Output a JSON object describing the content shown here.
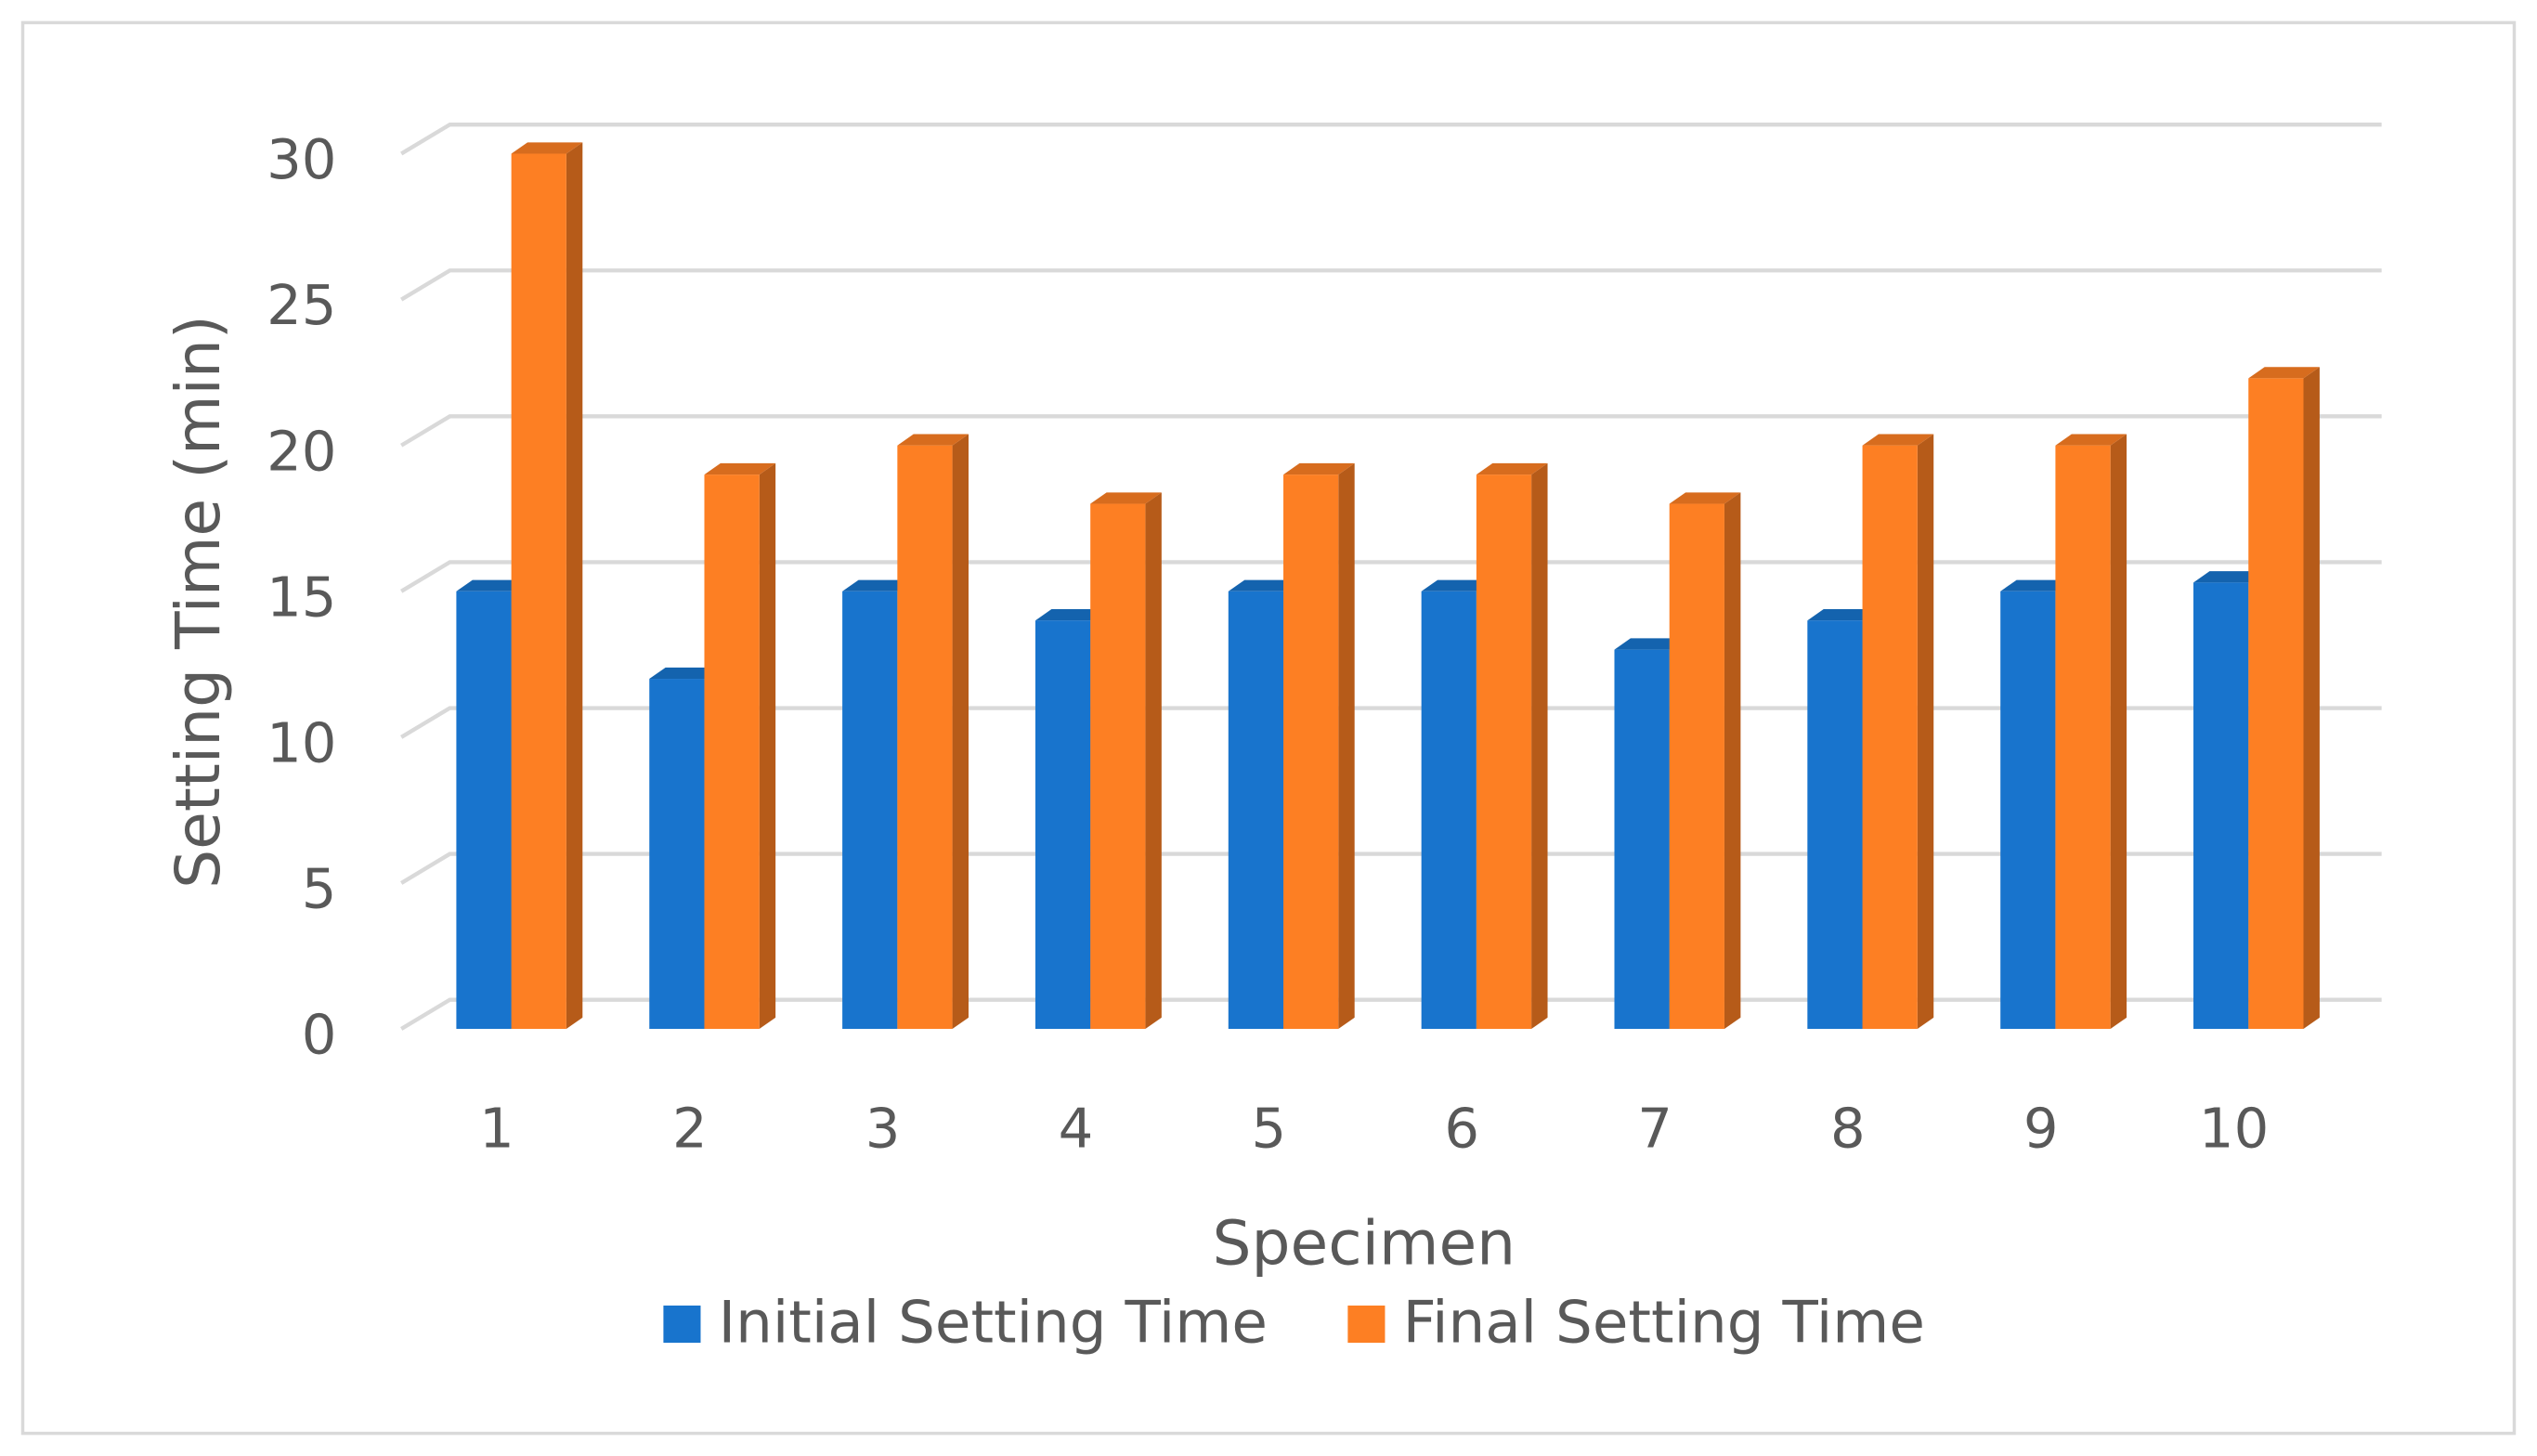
{
  "chart_data": {
    "type": "bar3d",
    "x_label": "Specimen",
    "y_label": "Setting Time  (min)",
    "categories": [
      "1",
      "2",
      "3",
      "4",
      "5",
      "6",
      "7",
      "8",
      "9",
      "10"
    ],
    "series": [
      {
        "name": "Initial Setting Time",
        "color": "#1874cd",
        "values": [
          15,
          12,
          15,
          14,
          15,
          15,
          13,
          14,
          15,
          15.3
        ]
      },
      {
        "name": "Final Setting Time",
        "color": "#fd7f23",
        "values": [
          30,
          19,
          20,
          18,
          19,
          19,
          18,
          20,
          20,
          22.3
        ]
      }
    ],
    "ylim": [
      0,
      30
    ],
    "yticks": [
      0,
      5,
      10,
      15,
      20,
      25,
      30
    ],
    "grid": true,
    "legend": "bottom"
  }
}
